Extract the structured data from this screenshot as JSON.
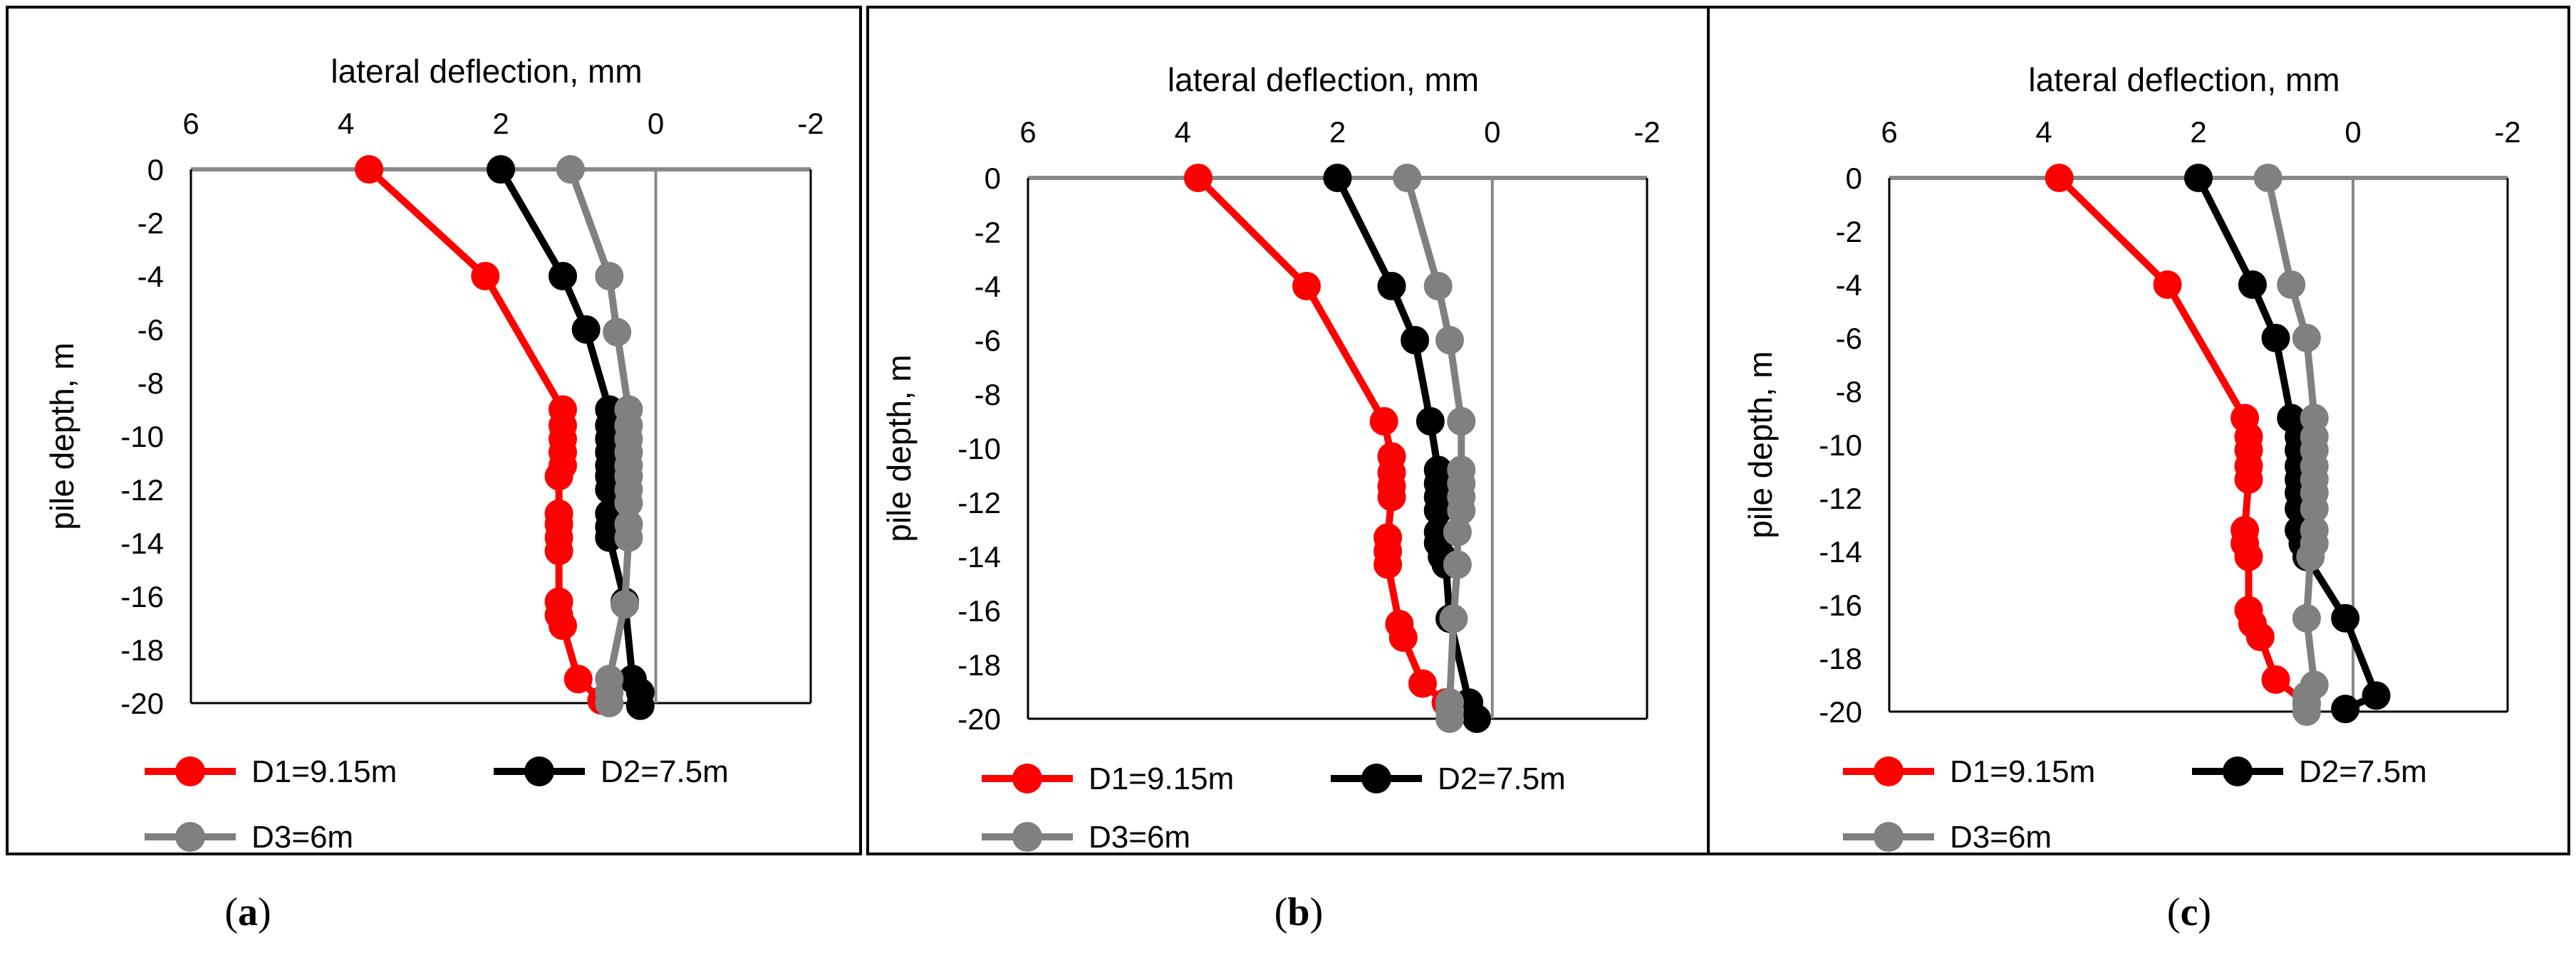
{
  "chart_data": [
    {
      "type": "line",
      "caption_letter": "a",
      "title": "",
      "xlabel": "lateral deflection, mm",
      "ylabel": "pile depth, m",
      "xlim": [
        6,
        -2
      ],
      "ylim": [
        -20,
        0
      ],
      "xticks": [
        6,
        4,
        2,
        0,
        -2
      ],
      "yticks": [
        0,
        -2,
        -4,
        -6,
        -8,
        -10,
        -12,
        -14,
        -16,
        -18,
        -20
      ],
      "legend_position": "bottom",
      "series": [
        {
          "name": "D1=9.15m",
          "color": "#ff0000",
          "x": [
            3.7,
            2.2,
            1.2,
            1.2,
            1.2,
            1.2,
            1.2,
            1.25,
            1.25,
            1.25,
            1.25,
            1.25,
            1.25,
            1.25,
            1.2,
            1.0,
            0.7
          ],
          "y": [
            0,
            -4,
            -9,
            -9.6,
            -10.1,
            -10.6,
            -11.1,
            -11.5,
            -12.9,
            -13.3,
            -13.8,
            -14.3,
            -16.2,
            -16.7,
            -17.1,
            -19.1,
            -19.9
          ]
        },
        {
          "name": "D2=7.5m",
          "color": "#000000",
          "x": [
            2.0,
            1.2,
            0.9,
            0.6,
            0.6,
            0.6,
            0.6,
            0.6,
            0.6,
            0.6,
            0.6,
            0.6,
            0.6,
            0.4,
            0.3,
            0.2,
            0.2
          ],
          "y": [
            0,
            -4,
            -6,
            -9,
            -9.6,
            -10.1,
            -10.6,
            -11.1,
            -11.5,
            -12.0,
            -12.9,
            -13.4,
            -13.8,
            -16.2,
            -19.1,
            -19.6,
            -20.1
          ]
        },
        {
          "name": "D3=6m",
          "color": "#808080",
          "x": [
            1.1,
            0.6,
            0.5,
            0.35,
            0.35,
            0.35,
            0.35,
            0.35,
            0.35,
            0.35,
            0.35,
            0.35,
            0.35,
            0.4,
            0.6,
            0.6,
            0.6
          ],
          "y": [
            0,
            -4,
            -6.1,
            -9,
            -9.6,
            -10.1,
            -10.6,
            -11.1,
            -11.5,
            -12.0,
            -12.5,
            -13.3,
            -13.8,
            -16.3,
            -19.1,
            -19.6,
            -20.0
          ]
        }
      ]
    },
    {
      "type": "line",
      "caption_letter": "b",
      "title": "",
      "xlabel": "lateral deflection, mm",
      "ylabel": "pile depth, m",
      "xlim": [
        6,
        -2
      ],
      "ylim": [
        -20,
        0
      ],
      "xticks": [
        6,
        4,
        2,
        0,
        -2
      ],
      "yticks": [
        0,
        -2,
        -4,
        -6,
        -8,
        -10,
        -12,
        -14,
        -16,
        -18,
        -20
      ],
      "legend_position": "bottom",
      "series": [
        {
          "name": "D1=9.15m",
          "color": "#ff0000",
          "x": [
            3.8,
            2.4,
            1.4,
            1.3,
            1.3,
            1.3,
            1.3,
            1.35,
            1.35,
            1.35,
            1.2,
            1.15,
            0.9,
            0.6
          ],
          "y": [
            0,
            -4,
            -9,
            -10.3,
            -10.9,
            -11.4,
            -11.8,
            -13.3,
            -13.8,
            -14.3,
            -16.5,
            -17.0,
            -18.7,
            -19.4
          ]
        },
        {
          "name": "D2=7.5m",
          "color": "#000000",
          "x": [
            2.0,
            1.3,
            1.0,
            0.8,
            0.7,
            0.7,
            0.7,
            0.7,
            0.7,
            0.7,
            0.65,
            0.6,
            0.55,
            0.3,
            0.2
          ],
          "y": [
            0,
            -4,
            -6,
            -9,
            -10.8,
            -11.3,
            -11.8,
            -12.3,
            -13.1,
            -13.5,
            -14.0,
            -14.3,
            -16.3,
            -19.4,
            -20.0
          ]
        },
        {
          "name": "D3=6m",
          "color": "#808080",
          "x": [
            1.1,
            0.7,
            0.55,
            0.4,
            0.4,
            0.4,
            0.4,
            0.4,
            0.45,
            0.45,
            0.5,
            0.55,
            0.55,
            0.55
          ],
          "y": [
            0,
            -4,
            -6,
            -9,
            -10.8,
            -11.3,
            -11.8,
            -12.3,
            -13.1,
            -14.3,
            -16.3,
            -19.4,
            -19.7,
            -20.0
          ]
        }
      ]
    },
    {
      "type": "line",
      "caption_letter": "c",
      "title": "",
      "xlabel": "lateral deflection, mm",
      "ylabel": "pile depth, m",
      "xlim": [
        6,
        -2
      ],
      "ylim": [
        -20,
        0
      ],
      "xticks": [
        6,
        4,
        2,
        0,
        -2
      ],
      "yticks": [
        0,
        -2,
        -4,
        -6,
        -8,
        -10,
        -12,
        -14,
        -16,
        -18,
        -20
      ],
      "legend_position": "bottom",
      "series": [
        {
          "name": "D1=9.15m",
          "color": "#ff0000",
          "x": [
            3.8,
            2.4,
            1.4,
            1.35,
            1.35,
            1.35,
            1.35,
            1.4,
            1.4,
            1.35,
            1.35,
            1.3,
            1.2,
            1.0,
            0.6
          ],
          "y": [
            0,
            -4,
            -9,
            -9.7,
            -10.2,
            -10.8,
            -11.3,
            -13.2,
            -13.7,
            -14.2,
            -16.2,
            -16.7,
            -17.2,
            -18.8,
            -19.7
          ]
        },
        {
          "name": "D2=7.5m",
          "color": "#000000",
          "x": [
            2.0,
            1.3,
            1.0,
            0.8,
            0.7,
            0.7,
            0.7,
            0.7,
            0.7,
            0.7,
            0.7,
            0.65,
            0.6,
            0.1,
            -0.3,
            0.1
          ],
          "y": [
            0,
            -4,
            -6,
            -9,
            -9.7,
            -10.2,
            -10.8,
            -11.3,
            -11.8,
            -12.4,
            -13.2,
            -13.7,
            -14.2,
            -16.5,
            -19.4,
            -19.9
          ]
        },
        {
          "name": "D3=6m",
          "color": "#808080",
          "x": [
            1.1,
            0.8,
            0.6,
            0.5,
            0.5,
            0.5,
            0.5,
            0.5,
            0.5,
            0.5,
            0.5,
            0.5,
            0.55,
            0.6,
            0.5,
            0.6,
            0.6,
            0.6
          ],
          "y": [
            0,
            -4,
            -6,
            -9,
            -9.7,
            -10.2,
            -10.8,
            -11.3,
            -11.8,
            -12.4,
            -13.2,
            -13.7,
            -14.2,
            -16.5,
            -19.0,
            -19.4,
            -19.7,
            -20.0
          ]
        }
      ]
    }
  ]
}
